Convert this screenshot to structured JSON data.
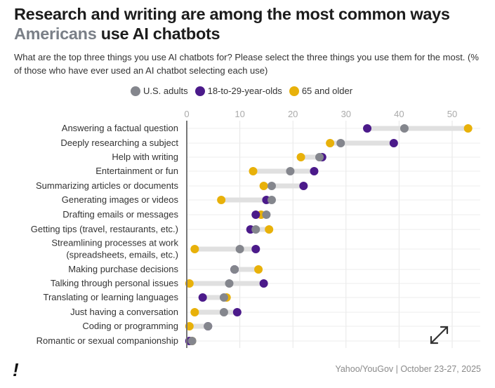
{
  "chart_data": {
    "type": "dot",
    "title_parts": [
      "Research and writing are among the most common ways ",
      "Americans",
      " use AI chatbots"
    ],
    "subtitle": "What are the top three things you use AI chatbots for? Please select the three things you use them for the most. (% of those who have ever used an AI chatbot selecting each use)",
    "xlim": [
      0,
      55
    ],
    "xticks": [
      "0",
      "10",
      "20",
      "30",
      "40",
      "50"
    ],
    "grid": true,
    "legend_position": "top",
    "categories": [
      [
        "Answering a factual question"
      ],
      [
        "Deeply researching a subject"
      ],
      [
        "Help with writing"
      ],
      [
        "Entertainment or fun"
      ],
      [
        "Summarizing articles or documents"
      ],
      [
        "Generating images or videos"
      ],
      [
        "Drafting emails or messages"
      ],
      [
        "Getting tips (travel, restaurants, etc.)"
      ],
      [
        "Streamlining processes at work",
        "(spreadsheets, emails, etc.)"
      ],
      [
        "Making purchase decisions"
      ],
      [
        "Talking through personal issues"
      ],
      [
        "Translating or learning languages"
      ],
      [
        "Just having a conversation"
      ],
      [
        "Coding or programming"
      ],
      [
        "Romantic or sexual companionship"
      ]
    ],
    "series": [
      {
        "name": "U.S. adults",
        "color": "#84868d",
        "values": [
          41,
          29,
          25,
          19.5,
          16,
          16,
          15,
          13,
          10,
          9,
          8,
          7,
          7,
          4,
          1
        ]
      },
      {
        "name": "18-to-29-year-olds",
        "color": "#4b1a8a",
        "values": [
          34,
          39,
          25.5,
          24,
          22,
          15,
          13,
          12,
          13,
          9,
          14.5,
          3,
          9.5,
          4,
          0.5
        ]
      },
      {
        "name": "65 and older",
        "color": "#e8b10a",
        "values": [
          53,
          27,
          21.5,
          12.5,
          14.5,
          6.5,
          14,
          15.5,
          1.5,
          13.5,
          0.5,
          7.5,
          1.5,
          0.5,
          1
        ]
      }
    ]
  },
  "footer": {
    "logo": "!",
    "source": "Yahoo/YouGov | October 23-27, 2025"
  }
}
